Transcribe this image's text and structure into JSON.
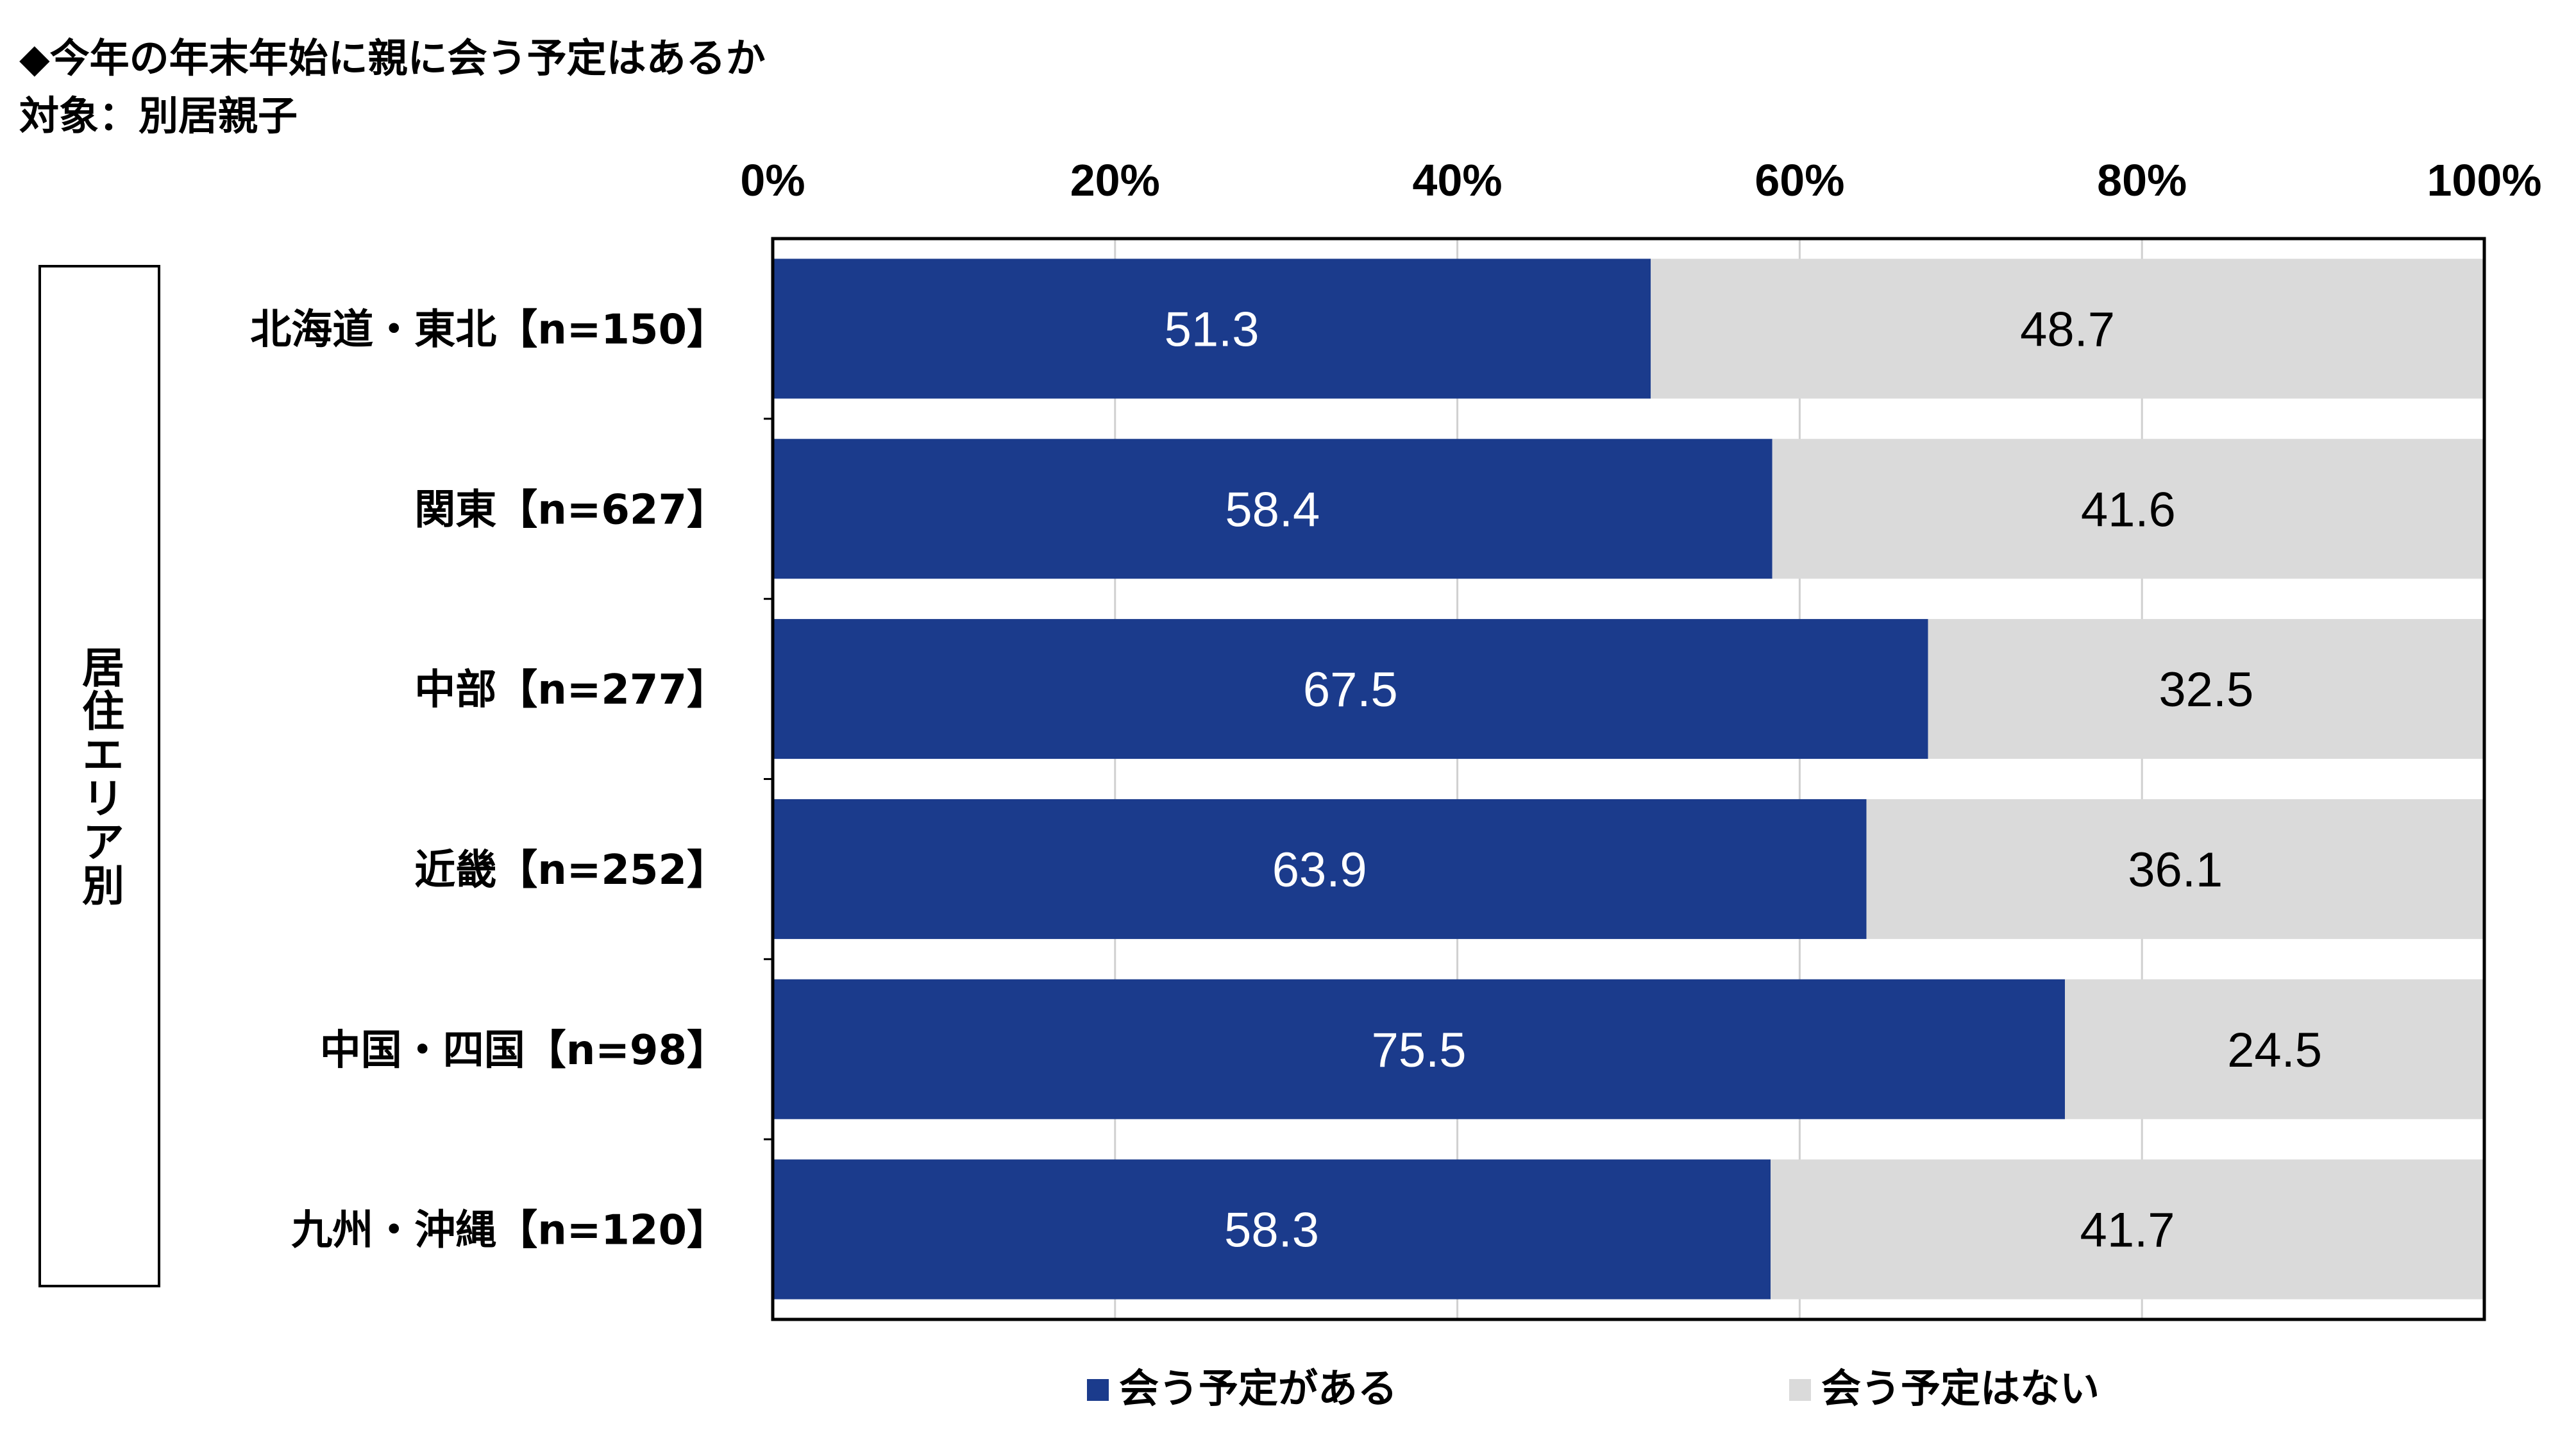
{
  "header": {
    "title": "◆今年の年末年始に親に会う予定はあるか",
    "subtitle": "対象：別居親子"
  },
  "group_label": "居住エリア別",
  "chart_data": {
    "type": "bar",
    "orientation": "horizontal",
    "stacked": true,
    "percent": true,
    "categories": [
      "北海道・東北【n=150】",
      "関東【n=627】",
      "中部【n=277】",
      "近畿【n=252】",
      "中国・四国【n=98】",
      "九州・沖縄【n=120】"
    ],
    "series": [
      {
        "name": "会う予定がある",
        "values": [
          51.3,
          58.4,
          67.5,
          63.9,
          75.5,
          58.3
        ],
        "color": "#1b3b8c",
        "label_color": "#ffffff"
      },
      {
        "name": "会う予定はない",
        "values": [
          48.7,
          41.6,
          32.5,
          36.1,
          24.5,
          41.7
        ],
        "color": "#dadada",
        "label_color": "#000000"
      }
    ],
    "xlim": [
      0,
      100
    ],
    "xticks": [
      "0%",
      "20%",
      "40%",
      "60%",
      "80%",
      "100%"
    ],
    "legend_position": "bottom"
  }
}
